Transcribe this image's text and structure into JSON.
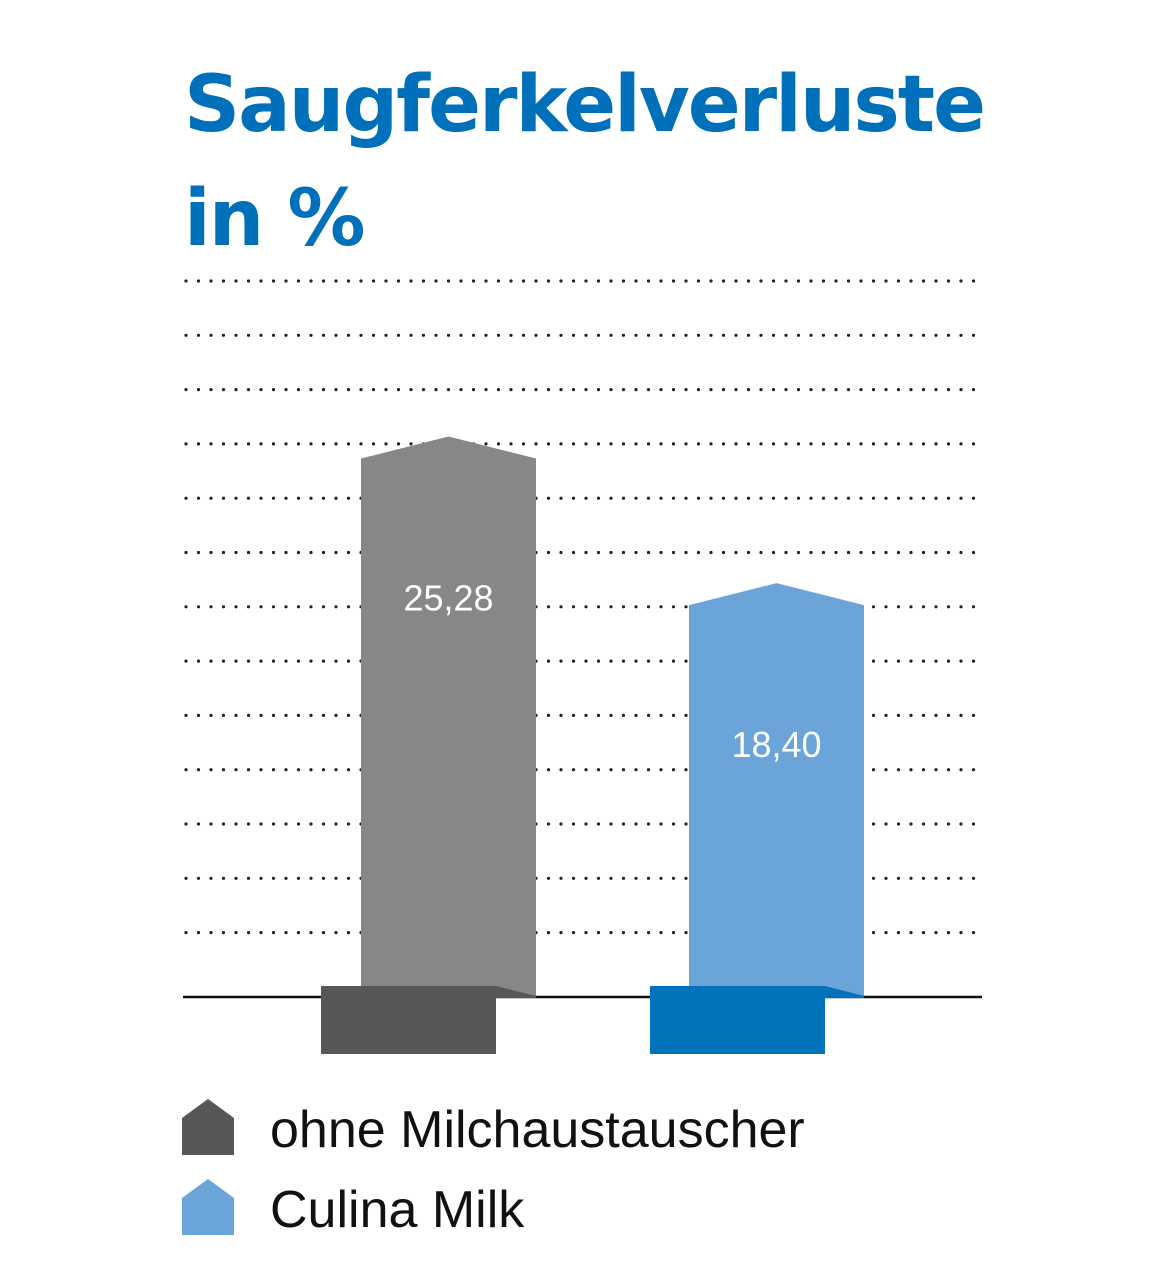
{
  "chart_data": {
    "type": "bar",
    "title_lines": [
      "Saugferkelverluste",
      "in %"
    ],
    "categories": [
      "ohne Milchaustauscher",
      "Culina Milk"
    ],
    "values": [
      25.28,
      18.4
    ],
    "value_labels": [
      "25,28",
      "18,40"
    ],
    "ylim": [
      0,
      30
    ],
    "grid": "dotted horizontal",
    "legend_position": "bottom-left",
    "series_colors": {
      "front": [
        "#878787",
        "#6aa4d9"
      ],
      "base": [
        "#575756",
        "#0073bc"
      ]
    },
    "label_color": "#ffffff"
  },
  "legend": {
    "items": [
      {
        "label": "ohne Milchaustauscher",
        "color": "#575756"
      },
      {
        "label": "Culina Milk",
        "color": "#6aa4d9"
      }
    ]
  },
  "colors": {
    "title": "#0070bb",
    "axis": "#111111",
    "grid_dots": "#222222"
  }
}
